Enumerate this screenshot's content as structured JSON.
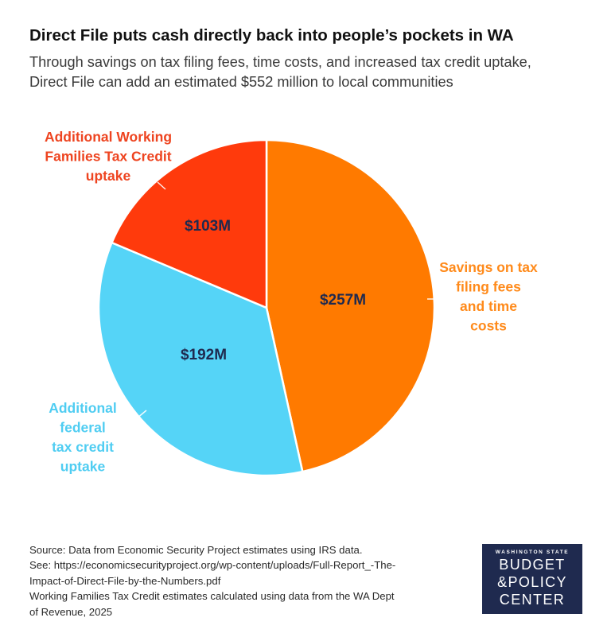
{
  "header": {
    "title": "Direct File puts cash directly back into people’s pockets in WA",
    "subtitle_line1": "Through savings on tax filing fees, time costs, and increased tax credit uptake,",
    "subtitle_line2": "Direct File can add an estimated $552 million to local communities"
  },
  "chart_data": {
    "type": "pie",
    "title": "Direct File puts cash directly back into people’s pockets in WA",
    "subtitle": "Through savings on tax filing fees, time costs, and increased tax credit uptake, Direct File can add an estimated $552 million to local communities",
    "unit": "$M",
    "slices": [
      {
        "name": "Savings on tax filing fees and time costs",
        "label_lines": [
          "Savings on tax",
          "filing fees",
          "and time",
          "costs"
        ],
        "value": 257,
        "value_label": "$257M",
        "color": "#ff7a00",
        "label_color": "#ff8a1a"
      },
      {
        "name": "Additional federal tax credit uptake",
        "label_lines": [
          "Additional",
          "federal",
          "tax credit",
          "uptake"
        ],
        "value": 192,
        "value_label": "$192M",
        "color": "#55d4f7",
        "label_color": "#4fcdf2"
      },
      {
        "name": "Additional Working Families Tax Credit uptake",
        "label_lines": [
          "Additional Working",
          "Families Tax Credit",
          "uptake"
        ],
        "value": 103,
        "value_label": "$103M",
        "color": "#ff3a0c",
        "label_color": "#ee4420"
      }
    ],
    "value_label_color": "#1f2a4f"
  },
  "footer": {
    "source_lines": [
      "Source: Data from Economic Security Project estimates using IRS data.",
      "See: https://economicsecurityproject.org/wp-content/uploads/Full-Report_-The-",
      "Impact-of-Direct-File-by-the-Numbers.pdf",
      "Working Families Tax Credit estimates calculated using data from the WA Dept",
      "of Revenue, 2025"
    ]
  },
  "logo": {
    "small": "WASHINGTON STATE",
    "line1": "BUDGET",
    "line2": "&POLICY",
    "line3": "CENTER",
    "bg_color": "#1f2a4f"
  }
}
